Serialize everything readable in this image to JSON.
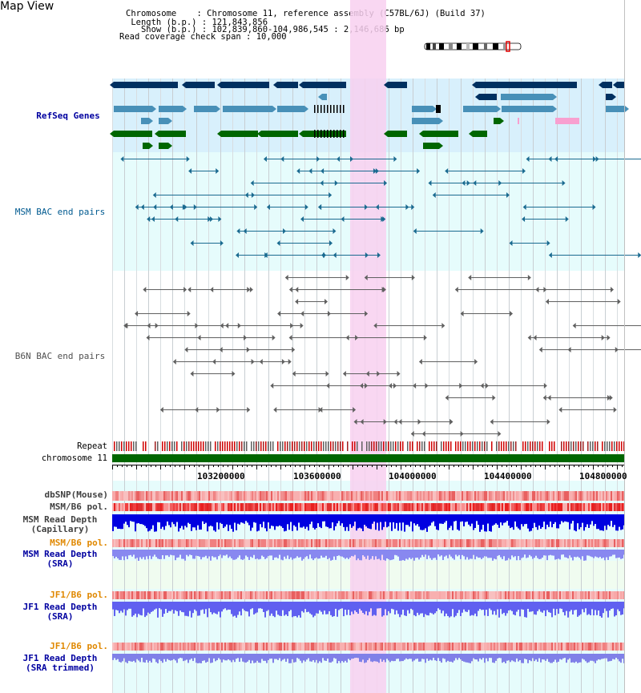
{
  "title": "Map View",
  "info": {
    "chromosome_key": "Chromosome",
    "chromosome_val": "Chromosome 11, reference assembly (C57BL/6J) (Build 37)",
    "length_key": "Length (b.p.)",
    "length_val": "121,843,856",
    "show_key": "Show (b.p.)",
    "show_val": "102,839,860-104,986,545 : 2,146,686 bp",
    "coverage_key": "Read coverage check span",
    "coverage_val": "10,000"
  },
  "tracks": {
    "refseq": "RefSeq Genes",
    "msm_bac": "MSM BAC end pairs",
    "b6n_bac": "B6N BAC end pairs",
    "repeat": "Repeat",
    "chromosome": "chromosome 11",
    "dbsnp": "dbSNP(Mouse)",
    "msm_b6_pol": "MSM/B6 pol.",
    "msm_depth_cap_1": "MSM Read Depth",
    "msm_depth_cap_2": "(Capillary)",
    "msm_b6_pol_2": "MSM/B6 pol.",
    "msm_depth_sra_1": "MSM Read Depth",
    "msm_depth_sra_2": "(SRA)",
    "jf1_b6_pol": "JF1/B6 pol.",
    "jf1_depth_sra_1": "JF1 Read Depth",
    "jf1_depth_sra_2": "(SRA)",
    "jf1_b6_pol_2": "JF1/B6 pol.",
    "jf1_depth_trim_1": "JF1 Read Depth",
    "jf1_depth_trim_2": "(SRA trimmed)"
  },
  "axis_ticks": [
    "103200000",
    "103600000",
    "104000000",
    "104400000",
    "104800000"
  ],
  "colors": {
    "refseq_bg": "#d8f0fc",
    "msm_bg": "#e6fcfc",
    "highlight": "#f8d0f0",
    "navy": "#003060",
    "teal": "#4890b8",
    "green": "#006600",
    "label_blue": "#0000a0",
    "label_orange": "#e08800"
  }
}
